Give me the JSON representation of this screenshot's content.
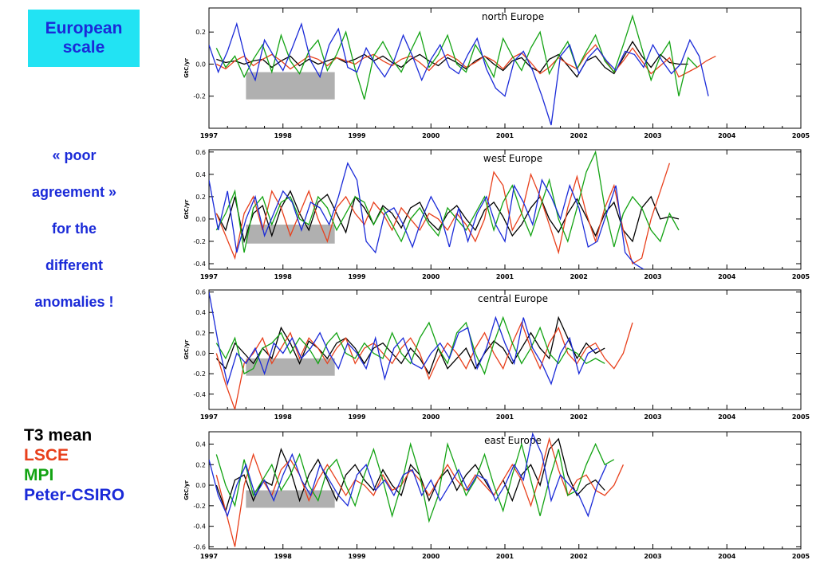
{
  "header": {
    "title_line1": "European",
    "title_line2": "scale"
  },
  "note": {
    "lines": [
      "« poor",
      "agreement »",
      "for the",
      "different",
      "anomalies !"
    ]
  },
  "legend": {
    "items": [
      {
        "label": "T3 mean",
        "color": "#000000"
      },
      {
        "label": "LSCE",
        "color": "#e8401c"
      },
      {
        "label": "MPI",
        "color": "#13a313"
      },
      {
        "label": "Peter-CSIRO",
        "color": "#1a2ad8"
      }
    ]
  },
  "chart_data": [
    {
      "type": "line",
      "title": "north Europe",
      "ylabel": "GtC/yr",
      "xlim": [
        1997,
        2005
      ],
      "ylim": [
        -0.4,
        0.35
      ],
      "yticks": [
        "0.2",
        "0.0",
        "-0.2"
      ],
      "ytick_values": [
        0.2,
        0.0,
        -0.2
      ],
      "xticks": [
        "1997",
        "1998",
        "1999",
        "2000",
        "2001",
        "2002",
        "2003",
        "2004",
        "2005"
      ],
      "series": [
        {
          "color": "#000000",
          "x0": 1997.1,
          "dx": 0.125,
          "values": [
            0.03,
            0.01,
            0.02,
            0.0,
            0.02,
            0.03,
            -0.02,
            0.02,
            0.05,
            -0.01,
            0.03,
            0.0,
            0.02,
            0.04,
            0.01,
            0.03,
            0.06,
            0.02,
            0.05,
            0.01,
            -0.02,
            0.03,
            0.06,
            0.02,
            -0.01,
            0.04,
            0.01,
            -0.03,
            0.02,
            0.05,
            0.0,
            -0.04,
            0.02,
            0.04,
            -0.02,
            -0.05,
            0.03,
            0.06,
            -0.01,
            -0.08,
            0.02,
            0.05,
            -0.02,
            -0.06,
            0.04,
            0.14,
            0.05,
            -0.02,
            0.06,
            0.01,
            0.0,
            0.0
          ]
        },
        {
          "color": "#e8401c",
          "x0": 1997.1,
          "dx": 0.125,
          "values": [
            0.0,
            -0.03,
            0.02,
            0.05,
            -0.01,
            0.03,
            0.06,
            0.02,
            -0.03,
            0.01,
            0.05,
            0.03,
            -0.01,
            0.04,
            0.02,
            0.0,
            0.04,
            0.06,
            0.02,
            -0.01,
            0.03,
            0.05,
            0.01,
            -0.04,
            0.02,
            0.06,
            0.03,
            -0.02,
            0.01,
            0.05,
            0.02,
            -0.03,
            0.04,
            0.07,
            0.01,
            -0.06,
            -0.02,
            0.04,
            0.0,
            -0.03,
            0.06,
            0.12,
            0.03,
            -0.05,
            0.02,
            0.1,
            0.02,
            -0.06,
            -0.01,
            0.04,
            -0.08,
            -0.05,
            -0.02,
            0.02,
            0.05
          ]
        },
        {
          "color": "#13a313",
          "x0": 1997.1,
          "dx": 0.125,
          "values": [
            0.1,
            -0.02,
            0.05,
            -0.08,
            0.03,
            0.12,
            -0.05,
            0.18,
            0.02,
            -0.06,
            0.08,
            0.15,
            -0.04,
            0.06,
            0.2,
            -0.03,
            -0.22,
            0.05,
            0.14,
            0.03,
            -0.05,
            0.08,
            0.2,
            -0.02,
            0.06,
            0.18,
            0.0,
            -0.05,
            0.12,
            0.03,
            -0.08,
            0.16,
            0.05,
            -0.04,
            0.1,
            0.2,
            -0.06,
            0.05,
            0.14,
            -0.03,
            0.08,
            0.18,
            0.02,
            -0.05,
            0.12,
            0.3,
            0.1,
            -0.1,
            0.05,
            0.14,
            -0.2,
            0.04,
            -0.02
          ]
        },
        {
          "color": "#1a2ad8",
          "x0": 1997.0,
          "dx": 0.125,
          "values": [
            0.12,
            -0.05,
            0.08,
            0.25,
            0.02,
            -0.1,
            0.15,
            0.05,
            -0.04,
            0.1,
            0.25,
            0.02,
            -0.08,
            0.12,
            0.22,
            -0.02,
            -0.05,
            0.1,
            0.0,
            -0.08,
            0.02,
            0.18,
            0.05,
            -0.1,
            0.03,
            0.12,
            -0.02,
            -0.06,
            0.06,
            0.16,
            -0.03,
            -0.15,
            -0.2,
            0.02,
            0.08,
            -0.04,
            -0.2,
            -0.38,
            0.05,
            0.12,
            -0.06,
            0.04,
            0.1,
            0.02,
            -0.04,
            0.08,
            0.06,
            -0.02,
            0.12,
            0.02,
            -0.06,
            0.0,
            0.15,
            0.05,
            -0.2
          ]
        }
      ]
    },
    {
      "type": "line",
      "title": "west Europe",
      "ylabel": "GtC/yr",
      "xlim": [
        1997,
        2005
      ],
      "ylim": [
        -0.45,
        0.62
      ],
      "yticks": [
        "0.6",
        "0.4",
        "0.2",
        "0.0",
        "-0.2",
        "-0.4"
      ],
      "ytick_values": [
        0.6,
        0.4,
        0.2,
        0.0,
        -0.2,
        -0.4
      ],
      "xticks": [
        "1997",
        "1998",
        "1999",
        "2000",
        "2001",
        "2002",
        "2003",
        "2004",
        "2005"
      ],
      "series": [
        {
          "color": "#000000",
          "x0": 1997.1,
          "dx": 0.125,
          "values": [
            0.05,
            -0.1,
            0.2,
            -0.2,
            0.05,
            0.12,
            -0.15,
            0.1,
            0.25,
            0.05,
            -0.1,
            0.15,
            0.22,
            0.05,
            -0.12,
            0.2,
            0.1,
            -0.05,
            0.12,
            0.05,
            -0.08,
            0.1,
            0.15,
            -0.02,
            -0.1,
            0.05,
            0.12,
            0.0,
            -0.1,
            0.08,
            0.15,
            0.02,
            -0.15,
            -0.05,
            0.1,
            0.2,
            0.0,
            -0.12,
            0.05,
            0.18,
            0.02,
            -0.15,
            0.05,
            0.15,
            -0.1,
            -0.2,
            0.1,
            0.2,
            0.0,
            0.02,
            0.0
          ]
        },
        {
          "color": "#e8401c",
          "x0": 1997.1,
          "dx": 0.125,
          "values": [
            0.05,
            -0.15,
            -0.35,
            0.05,
            0.2,
            -0.1,
            0.25,
            0.1,
            -0.15,
            0.05,
            0.25,
            0.0,
            -0.2,
            0.1,
            0.2,
            0.05,
            -0.05,
            0.15,
            0.05,
            -0.1,
            0.1,
            0.0,
            -0.1,
            0.05,
            0.0,
            -0.1,
            0.05,
            -0.05,
            -0.2,
            0.0,
            0.42,
            0.3,
            -0.1,
            0.05,
            0.4,
            0.2,
            -0.05,
            -0.3,
            0.1,
            0.38,
            0.05,
            -0.2,
            0.1,
            0.3,
            -0.1,
            -0.4,
            -0.35,
            0.0,
            0.25,
            0.5
          ]
        },
        {
          "color": "#13a313",
          "x0": 1997.1,
          "dx": 0.125,
          "values": [
            -0.1,
            0.05,
            0.25,
            -0.3,
            0.1,
            0.2,
            -0.05,
            0.15,
            0.2,
            0.0,
            -0.05,
            0.2,
            0.1,
            -0.1,
            0.05,
            0.2,
            0.15,
            -0.05,
            0.1,
            -0.05,
            -0.2,
            0.0,
            0.1,
            -0.05,
            -0.15,
            0.1,
            0.0,
            -0.1,
            0.05,
            0.2,
            -0.1,
            0.15,
            0.3,
            0.05,
            -0.15,
            0.1,
            0.35,
            0.0,
            -0.2,
            0.1,
            0.42,
            0.6,
            0.1,
            -0.25,
            0.05,
            0.2,
            0.1,
            -0.1,
            -0.2,
            0.05,
            -0.1
          ]
        },
        {
          "color": "#1a2ad8",
          "x0": 1997.0,
          "dx": 0.125,
          "values": [
            0.35,
            -0.1,
            0.25,
            -0.3,
            0.0,
            0.2,
            -0.15,
            0.05,
            0.25,
            0.15,
            -0.1,
            0.15,
            0.1,
            -0.05,
            0.2,
            0.5,
            0.35,
            -0.2,
            -0.3,
            0.05,
            0.1,
            -0.05,
            -0.25,
            0.0,
            0.2,
            0.05,
            -0.25,
            0.1,
            -0.2,
            0.05,
            0.2,
            -0.05,
            -0.2,
            0.3,
            0.15,
            -0.05,
            0.35,
            0.2,
            0.0,
            0.3,
            0.1,
            -0.25,
            -0.2,
            0.05,
            0.3,
            -0.3,
            -0.4,
            -0.45
          ]
        }
      ]
    },
    {
      "type": "line",
      "title": "central Europe",
      "ylabel": "GtC/yr",
      "xlim": [
        1997,
        2005
      ],
      "ylim": [
        -0.55,
        0.62
      ],
      "yticks": [
        "0.6",
        "0.4",
        "0.2",
        "0.0",
        "-0.2",
        "-0.4"
      ],
      "ytick_values": [
        0.6,
        0.4,
        0.2,
        0.0,
        -0.2,
        -0.4
      ],
      "xticks": [
        "1997",
        "1998",
        "1999",
        "2000",
        "2001",
        "2002",
        "2003",
        "2004",
        "2005"
      ],
      "series": [
        {
          "color": "#000000",
          "x0": 1997.1,
          "dx": 0.125,
          "values": [
            -0.05,
            -0.15,
            0.1,
            0.0,
            -0.1,
            0.05,
            -0.05,
            0.25,
            0.1,
            -0.1,
            0.12,
            0.05,
            -0.05,
            0.1,
            0.15,
            0.05,
            -0.1,
            0.05,
            0.1,
            0.0,
            -0.1,
            0.05,
            -0.05,
            -0.2,
            0.05,
            -0.15,
            -0.05,
            0.05,
            -0.15,
            0.0,
            0.12,
            0.05,
            -0.1,
            0.05,
            0.2,
            0.05,
            -0.05,
            0.35,
            0.15,
            -0.05,
            0.1,
            0.0,
            0.05
          ]
        },
        {
          "color": "#e8401c",
          "x0": 1997.1,
          "dx": 0.125,
          "values": [
            0.0,
            -0.3,
            -0.55,
            -0.1,
            0.0,
            0.15,
            -0.1,
            0.05,
            0.2,
            -0.05,
            0.15,
            0.05,
            -0.1,
            0.05,
            0.15,
            -0.1,
            0.05,
            0.1,
            0.0,
            -0.1,
            0.05,
            0.15,
            0.0,
            -0.25,
            -0.05,
            0.1,
            0.0,
            -0.15,
            0.05,
            0.2,
            0.0,
            -0.15,
            0.1,
            0.3,
            0.05,
            -0.15,
            0.1,
            0.25,
            0.0,
            -0.1,
            0.05,
            0.1,
            -0.05,
            -0.15,
            0.0,
            0.3
          ]
        },
        {
          "color": "#13a313",
          "x0": 1997.1,
          "dx": 0.125,
          "values": [
            0.1,
            -0.05,
            0.15,
            -0.2,
            -0.15,
            0.05,
            0.1,
            0.2,
            0.0,
            0.15,
            0.05,
            -0.1,
            0.1,
            0.2,
            0.0,
            -0.05,
            0.1,
            0.0,
            -0.05,
            0.2,
            0.0,
            -0.1,
            0.15,
            0.3,
            0.05,
            -0.1,
            0.2,
            0.3,
            0.0,
            -0.2,
            0.1,
            0.35,
            0.1,
            -0.1,
            0.05,
            0.25,
            0.0,
            -0.1,
            0.05,
            0.0,
            -0.1,
            -0.05,
            -0.1
          ]
        },
        {
          "color": "#1a2ad8",
          "x0": 1997.0,
          "dx": 0.125,
          "values": [
            0.6,
            0.1,
            -0.3,
            0.0,
            -0.1,
            0.05,
            -0.2,
            0.1,
            0.0,
            0.15,
            -0.05,
            0.05,
            0.2,
            0.0,
            -0.15,
            0.1,
            0.0,
            -0.15,
            0.15,
            -0.25,
            0.05,
            0.15,
            -0.1,
            -0.15,
            0.0,
            0.1,
            -0.05,
            0.2,
            0.25,
            -0.15,
            0.05,
            0.35,
            0.1,
            -0.1,
            0.35,
            0.05,
            -0.1,
            -0.3,
            0.0,
            0.15,
            -0.2,
            0.0,
            0.05
          ]
        }
      ]
    },
    {
      "type": "line",
      "title": "east Europe",
      "ylabel": "GtC/yr",
      "xlim": [
        1997,
        2005
      ],
      "ylim": [
        -0.62,
        0.52
      ],
      "yticks": [
        "0.4",
        "0.2",
        "0.0",
        "-0.2",
        "-0.4",
        "-0.6"
      ],
      "ytick_values": [
        0.4,
        0.2,
        0.0,
        -0.2,
        -0.4,
        -0.6
      ],
      "xticks": [
        "1997",
        "1998",
        "1999",
        "2000",
        "2001",
        "2002",
        "2003",
        "2004",
        "2005"
      ],
      "series": [
        {
          "color": "#000000",
          "x0": 1997.1,
          "dx": 0.125,
          "values": [
            0.0,
            -0.25,
            0.05,
            0.1,
            -0.15,
            0.05,
            0.0,
            0.35,
            0.15,
            -0.15,
            0.1,
            0.25,
            0.05,
            -0.15,
            0.1,
            0.2,
            0.05,
            -0.05,
            0.15,
            0.0,
            -0.1,
            0.2,
            0.1,
            -0.15,
            0.05,
            0.15,
            -0.05,
            0.1,
            0.2,
            0.05,
            -0.1,
            0.05,
            -0.15,
            0.1,
            0.2,
            0.0,
            0.35,
            0.45,
            0.1,
            -0.1,
            0.0,
            0.05,
            -0.05
          ]
        },
        {
          "color": "#e8401c",
          "x0": 1997.1,
          "dx": 0.125,
          "values": [
            0.1,
            -0.25,
            -0.6,
            0.0,
            0.3,
            0.05,
            -0.1,
            0.15,
            0.25,
            0.1,
            -0.15,
            0.05,
            0.2,
            0.05,
            -0.1,
            0.05,
            0.0,
            -0.1,
            0.1,
            -0.05,
            0.0,
            0.15,
            0.05,
            -0.1,
            0.05,
            0.2,
            0.05,
            -0.05,
            0.1,
            0.0,
            -0.1,
            0.05,
            0.2,
            0.05,
            -0.2,
            0.1,
            0.45,
            0.15,
            -0.1,
            0.05,
            0.1,
            -0.05,
            -0.1,
            0.0,
            0.2
          ]
        },
        {
          "color": "#13a313",
          "x0": 1997.1,
          "dx": 0.125,
          "values": [
            0.3,
            0.0,
            -0.2,
            0.25,
            -0.1,
            0.05,
            0.2,
            -0.05,
            0.1,
            0.3,
            0.0,
            -0.15,
            0.15,
            0.25,
            0.0,
            -0.2,
            0.1,
            0.35,
            0.05,
            -0.3,
            0.0,
            0.4,
            0.1,
            -0.35,
            -0.1,
            0.4,
            0.15,
            -0.1,
            0.05,
            0.3,
            0.0,
            -0.25,
            0.1,
            0.4,
            0.05,
            -0.3,
            0.05,
            0.35,
            -0.1,
            -0.05,
            0.2,
            0.4,
            0.2,
            0.25
          ]
        },
        {
          "color": "#1a2ad8",
          "x0": 1997.0,
          "dx": 0.125,
          "values": [
            0.25,
            -0.1,
            -0.3,
            0.0,
            0.2,
            -0.1,
            0.05,
            -0.15,
            0.1,
            0.3,
            0.05,
            -0.1,
            0.2,
            0.05,
            -0.1,
            -0.2,
            0.1,
            0.2,
            -0.05,
            0.05,
            -0.1,
            0.1,
            0.15,
            -0.1,
            0.05,
            -0.15,
            0.0,
            0.15,
            -0.05,
            0.1,
            0.05,
            -0.15,
            0.0,
            0.2,
            0.05,
            0.5,
            0.3,
            -0.15,
            0.1,
            0.0,
            -0.1,
            -0.3,
            0.0,
            0.2
          ]
        }
      ]
    }
  ]
}
